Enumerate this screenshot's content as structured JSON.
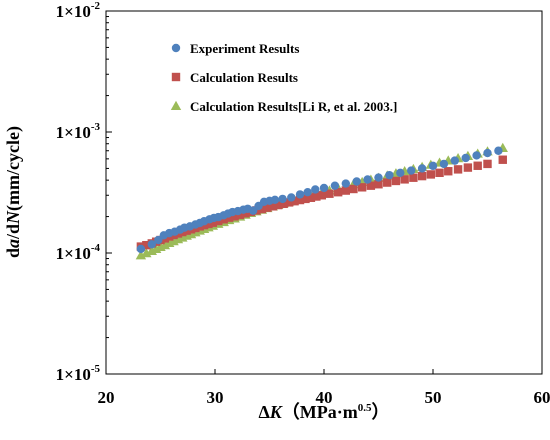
{
  "chart_data": {
    "type": "scatter",
    "title": "",
    "xlabel": {
      "prefix": "Δ",
      "var": "K",
      "unit_open": "（MPa·m",
      "unit_exp": "0.5",
      "unit_close": "）"
    },
    "ylabel": {
      "part1": "d",
      "part2": "a",
      "part3": "/d",
      "part4": "N",
      "part5": "(mm/cycle)"
    },
    "xlim": [
      20,
      60
    ],
    "ylim": [
      1e-05,
      0.01
    ],
    "yscale": "log",
    "grid": false,
    "legend_position": "top-left",
    "x_ticks": [
      {
        "value": 20,
        "label": "20"
      },
      {
        "value": 30,
        "label": "30"
      },
      {
        "value": 40,
        "label": "40"
      },
      {
        "value": 50,
        "label": "50"
      },
      {
        "value": 60,
        "label": "60"
      }
    ],
    "y_ticks": [
      {
        "value": 0.01,
        "mantissa": "1×10",
        "exponent": "-2"
      },
      {
        "value": 0.001,
        "mantissa": "1×10",
        "exponent": "-3"
      },
      {
        "value": 0.0001,
        "mantissa": "1×10",
        "exponent": "-4"
      },
      {
        "value": 1e-05,
        "mantissa": "1×10",
        "exponent": "-5"
      }
    ],
    "series": [
      {
        "name": "Experiment Results",
        "marker": "circle",
        "color": "#4F81BD",
        "x": [
          23.2,
          24.2,
          24.8,
          25.3,
          25.8,
          26.3,
          26.8,
          27.2,
          27.7,
          28.2,
          28.6,
          29.0,
          29.5,
          29.9,
          30.3,
          30.8,
          31.2,
          31.6,
          32.1,
          32.6,
          33.0,
          33.5,
          34.0,
          34.5,
          35.0,
          35.5,
          36.2,
          37.0,
          37.8,
          38.5,
          39.2,
          40.0,
          41.0,
          42.0,
          43.0,
          44.0,
          45.0,
          46.0,
          47.0,
          48.0,
          49.0,
          50.0,
          51.0,
          52.0,
          53.0,
          54.0,
          55.0,
          56.0
        ],
        "y": [
          0.000108,
          0.000118,
          0.000128,
          0.00014,
          0.000146,
          0.00015,
          0.000156,
          0.000162,
          0.000166,
          0.000172,
          0.000177,
          0.000183,
          0.00019,
          0.000195,
          0.000198,
          0.000205,
          0.000212,
          0.000218,
          0.000222,
          0.000228,
          0.000232,
          0.000224,
          0.000245,
          0.000265,
          0.00027,
          0.000275,
          0.00028,
          0.000288,
          0.000305,
          0.000318,
          0.000335,
          0.000345,
          0.00036,
          0.000375,
          0.00039,
          0.000405,
          0.00042,
          0.00044,
          0.00046,
          0.00048,
          0.0005,
          0.000525,
          0.000545,
          0.00058,
          0.00061,
          0.00064,
          0.00067,
          0.0007
        ]
      },
      {
        "name": "Calculation Results",
        "marker": "square",
        "color": "#C0504D",
        "x": [
          23.2,
          23.7,
          24.2,
          24.6,
          25.0,
          25.4,
          25.8,
          26.2,
          26.6,
          27.0,
          27.4,
          27.8,
          28.2,
          28.6,
          29.0,
          29.4,
          29.8,
          30.3,
          30.8,
          31.3,
          31.8,
          32.3,
          32.8,
          33.3,
          33.8,
          34.3,
          34.8,
          35.3,
          35.8,
          36.3,
          36.8,
          37.3,
          37.8,
          38.3,
          38.8,
          39.3,
          39.8,
          40.5,
          41.3,
          42.0,
          42.7,
          43.5,
          44.3,
          45.0,
          45.8,
          46.6,
          47.4,
          48.2,
          49.0,
          49.8,
          50.6,
          51.4,
          52.3,
          53.2,
          54.1,
          55.0,
          56.4
        ],
        "y": [
          0.000113,
          0.000116,
          0.00012,
          0.000124,
          0.000128,
          0.000132,
          0.000137,
          0.000141,
          0.000145,
          0.000149,
          0.000153,
          0.000157,
          0.000161,
          0.000166,
          0.00017,
          0.000174,
          0.000178,
          0.000184,
          0.00019,
          0.000196,
          0.000201,
          0.000207,
          0.000213,
          0.000219,
          0.000225,
          0.000231,
          0.000237,
          0.000243,
          0.000249,
          0.000255,
          0.000262,
          0.000268,
          0.000274,
          0.00028,
          0.000286,
          0.000293,
          0.0003,
          0.000309,
          0.000318,
          0.000328,
          0.000338,
          0.000349,
          0.00036,
          0.00037,
          0.000382,
          0.000394,
          0.000406,
          0.000419,
          0.000432,
          0.000446,
          0.00046,
          0.000474,
          0.000491,
          0.000508,
          0.000526,
          0.000545,
          0.00059
        ]
      },
      {
        "name": "Calculation Results[Li R, et al. 2003.]",
        "marker": "triangle",
        "color": "#9BBB59",
        "x": [
          23.2,
          23.7,
          24.2,
          24.6,
          25.0,
          25.4,
          25.8,
          26.2,
          26.6,
          27.0,
          27.4,
          27.8,
          28.2,
          28.6,
          29.0,
          29.4,
          29.8,
          30.3,
          30.8,
          31.3,
          31.8,
          32.3,
          32.8,
          33.3,
          33.8,
          34.3,
          34.8,
          35.3,
          35.8,
          36.3,
          36.8,
          37.3,
          37.8,
          38.3,
          38.8,
          39.3,
          39.8,
          40.5,
          41.3,
          42.0,
          42.7,
          43.5,
          44.3,
          45.0,
          45.8,
          46.6,
          47.4,
          48.2,
          49.0,
          49.8,
          50.6,
          51.4,
          52.3,
          53.2,
          54.1,
          55.0,
          56.4
        ],
        "y": [
          9.55e-05,
          9.95e-05,
          0.000104,
          0.000108,
          0.000112,
          0.000116,
          0.000121,
          0.000125,
          0.00013,
          0.000134,
          0.000139,
          0.000143,
          0.000148,
          0.000153,
          0.000158,
          0.000163,
          0.000168,
          0.000174,
          0.00018,
          0.000187,
          0.000193,
          0.0002,
          0.000207,
          0.000214,
          0.000221,
          0.000228,
          0.000235,
          0.000242,
          0.00025,
          0.000258,
          0.000266,
          0.000274,
          0.000282,
          0.00029,
          0.000298,
          0.000307,
          0.000315,
          0.000328,
          0.000343,
          0.000356,
          0.00037,
          0.000386,
          0.000403,
          0.000418,
          0.000436,
          0.000455,
          0.000474,
          0.000494,
          0.000514,
          0.000536,
          0.000558,
          0.000581,
          0.000607,
          0.000634,
          0.000662,
          0.000691,
          0.000738
        ]
      }
    ]
  }
}
